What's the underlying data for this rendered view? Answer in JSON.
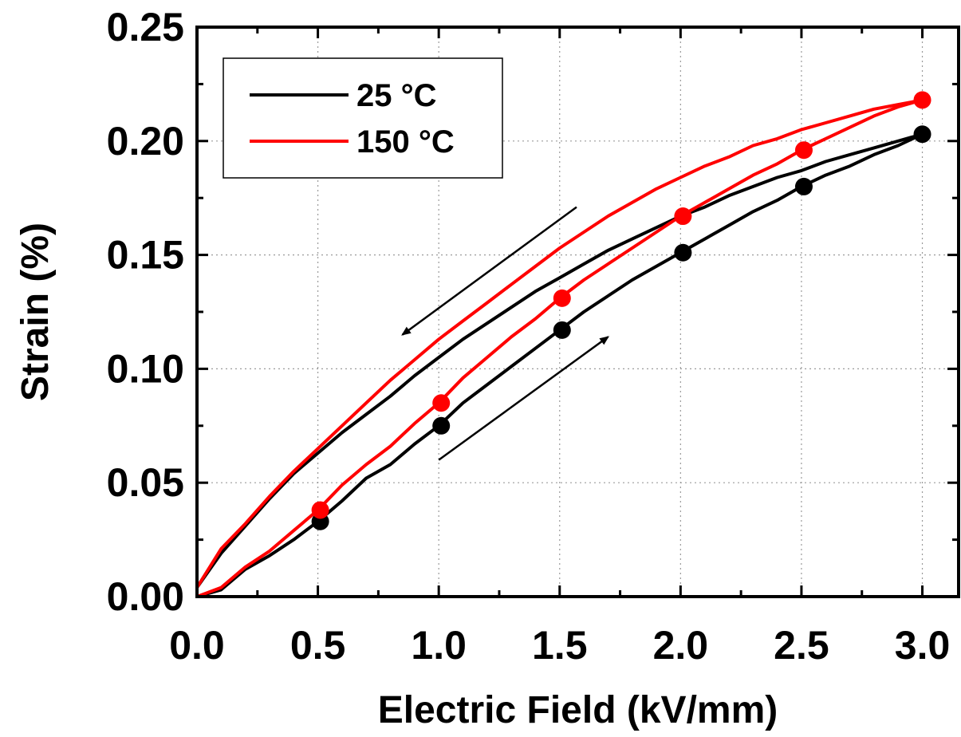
{
  "chart_data": {
    "type": "line",
    "title": "",
    "xlabel": "Electric Field (kV/mm)",
    "ylabel": "Strain (%)",
    "xlim": [
      0.0,
      3.15
    ],
    "ylim": [
      0.0,
      0.25
    ],
    "x_ticks": [
      "0.0",
      "0.5",
      "1.0",
      "1.5",
      "2.0",
      "2.5",
      "3.0"
    ],
    "y_ticks": [
      "0.00",
      "0.05",
      "0.10",
      "0.15",
      "0.20",
      "0.25"
    ],
    "grid": true,
    "legend_position": "top-left",
    "series": [
      {
        "name": "25 °C",
        "color": "#000000",
        "ascending": [
          [
            0.0,
            0.0
          ],
          [
            0.1,
            0.003
          ],
          [
            0.2,
            0.012
          ],
          [
            0.3,
            0.018
          ],
          [
            0.4,
            0.025
          ],
          [
            0.5,
            0.033
          ],
          [
            0.6,
            0.042
          ],
          [
            0.7,
            0.052
          ],
          [
            0.8,
            0.058
          ],
          [
            0.9,
            0.067
          ],
          [
            1.0,
            0.075
          ],
          [
            1.1,
            0.085
          ],
          [
            1.2,
            0.093
          ],
          [
            1.3,
            0.101
          ],
          [
            1.4,
            0.109
          ],
          [
            1.5,
            0.117
          ],
          [
            1.6,
            0.125
          ],
          [
            1.7,
            0.132
          ],
          [
            1.8,
            0.139
          ],
          [
            1.9,
            0.145
          ],
          [
            2.0,
            0.151
          ],
          [
            2.1,
            0.157
          ],
          [
            2.2,
            0.163
          ],
          [
            2.3,
            0.169
          ],
          [
            2.4,
            0.174
          ],
          [
            2.5,
            0.18
          ],
          [
            2.6,
            0.185
          ],
          [
            2.7,
            0.189
          ],
          [
            2.8,
            0.194
          ],
          [
            2.9,
            0.198
          ],
          [
            3.0,
            0.203
          ]
        ],
        "descending": [
          [
            3.0,
            0.203
          ],
          [
            2.9,
            0.2
          ],
          [
            2.8,
            0.197
          ],
          [
            2.7,
            0.194
          ],
          [
            2.6,
            0.191
          ],
          [
            2.5,
            0.187
          ],
          [
            2.4,
            0.184
          ],
          [
            2.3,
            0.18
          ],
          [
            2.2,
            0.176
          ],
          [
            2.1,
            0.171
          ],
          [
            2.0,
            0.167
          ],
          [
            1.9,
            0.162
          ],
          [
            1.8,
            0.157
          ],
          [
            1.7,
            0.152
          ],
          [
            1.6,
            0.146
          ],
          [
            1.5,
            0.14
          ],
          [
            1.4,
            0.134
          ],
          [
            1.3,
            0.127
          ],
          [
            1.2,
            0.12
          ],
          [
            1.1,
            0.113
          ],
          [
            1.0,
            0.105
          ],
          [
            0.9,
            0.097
          ],
          [
            0.8,
            0.088
          ],
          [
            0.7,
            0.08
          ],
          [
            0.6,
            0.072
          ],
          [
            0.5,
            0.063
          ],
          [
            0.4,
            0.054
          ],
          [
            0.3,
            0.043
          ],
          [
            0.2,
            0.031
          ],
          [
            0.1,
            0.019
          ],
          [
            0.0,
            0.004
          ]
        ],
        "markers": [
          [
            0.51,
            0.033
          ],
          [
            1.01,
            0.075
          ],
          [
            1.51,
            0.117
          ],
          [
            2.01,
            0.151
          ],
          [
            2.51,
            0.18
          ],
          [
            3.0,
            0.203
          ]
        ]
      },
      {
        "name": "150 °C",
        "color": "#ff0000",
        "ascending": [
          [
            0.0,
            0.0
          ],
          [
            0.1,
            0.004
          ],
          [
            0.2,
            0.013
          ],
          [
            0.3,
            0.02
          ],
          [
            0.4,
            0.029
          ],
          [
            0.5,
            0.038
          ],
          [
            0.6,
            0.049
          ],
          [
            0.7,
            0.058
          ],
          [
            0.8,
            0.066
          ],
          [
            0.9,
            0.076
          ],
          [
            1.0,
            0.085
          ],
          [
            1.1,
            0.096
          ],
          [
            1.2,
            0.105
          ],
          [
            1.3,
            0.114
          ],
          [
            1.4,
            0.122
          ],
          [
            1.5,
            0.131
          ],
          [
            1.6,
            0.139
          ],
          [
            1.7,
            0.146
          ],
          [
            1.8,
            0.153
          ],
          [
            1.9,
            0.16
          ],
          [
            2.0,
            0.167
          ],
          [
            2.1,
            0.173
          ],
          [
            2.2,
            0.179
          ],
          [
            2.3,
            0.185
          ],
          [
            2.4,
            0.19
          ],
          [
            2.5,
            0.196
          ],
          [
            2.6,
            0.201
          ],
          [
            2.7,
            0.206
          ],
          [
            2.8,
            0.211
          ],
          [
            2.9,
            0.215
          ],
          [
            3.0,
            0.218
          ]
        ],
        "descending": [
          [
            3.0,
            0.218
          ],
          [
            2.9,
            0.216
          ],
          [
            2.8,
            0.214
          ],
          [
            2.7,
            0.211
          ],
          [
            2.6,
            0.208
          ],
          [
            2.5,
            0.205
          ],
          [
            2.4,
            0.201
          ],
          [
            2.3,
            0.198
          ],
          [
            2.2,
            0.193
          ],
          [
            2.1,
            0.189
          ],
          [
            2.0,
            0.184
          ],
          [
            1.9,
            0.179
          ],
          [
            1.8,
            0.173
          ],
          [
            1.7,
            0.167
          ],
          [
            1.6,
            0.16
          ],
          [
            1.5,
            0.153
          ],
          [
            1.4,
            0.145
          ],
          [
            1.3,
            0.137
          ],
          [
            1.2,
            0.129
          ],
          [
            1.1,
            0.121
          ],
          [
            1.0,
            0.113
          ],
          [
            0.9,
            0.104
          ],
          [
            0.8,
            0.095
          ],
          [
            0.7,
            0.085
          ],
          [
            0.6,
            0.075
          ],
          [
            0.5,
            0.065
          ],
          [
            0.4,
            0.055
          ],
          [
            0.3,
            0.044
          ],
          [
            0.2,
            0.032
          ],
          [
            0.1,
            0.021
          ],
          [
            0.0,
            0.004
          ]
        ],
        "markers": [
          [
            0.51,
            0.038
          ],
          [
            1.01,
            0.085
          ],
          [
            1.51,
            0.131
          ],
          [
            2.01,
            0.167
          ],
          [
            2.51,
            0.196
          ],
          [
            3.0,
            0.218
          ]
        ]
      }
    ],
    "annotations": [
      {
        "type": "arrow",
        "direction": "down-left",
        "from": [
          1.57,
          0.171
        ],
        "to": [
          0.85,
          0.115
        ]
      },
      {
        "type": "arrow",
        "direction": "up-right",
        "from": [
          1.0,
          0.06
        ],
        "to": [
          1.7,
          0.114
        ]
      }
    ]
  }
}
